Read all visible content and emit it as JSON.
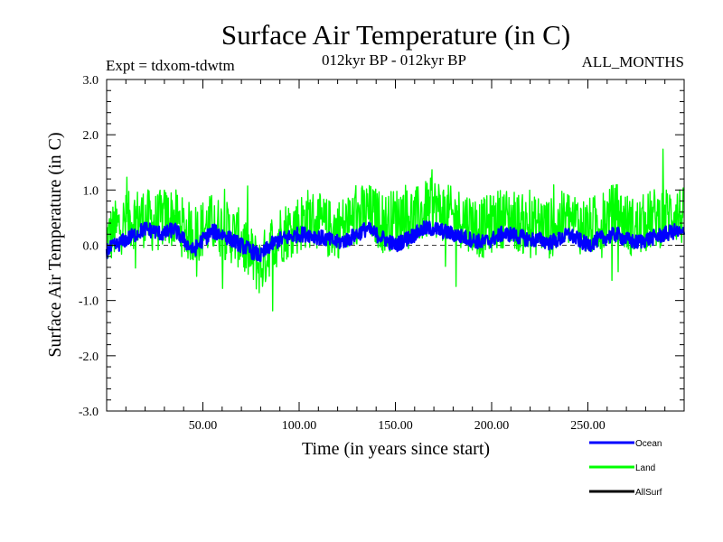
{
  "chart_data": {
    "type": "line",
    "title": "Surface Air Temperature (in C)",
    "experiment": "Expt = tdxom-tdwtm",
    "period": "012kyr BP - 012kyr BP",
    "season": "ALL_MONTHS",
    "xlabel": "Time (in years since start)",
    "ylabel": "Surface Air Temperature (in C)",
    "xlim": [
      0,
      300
    ],
    "ylim": [
      -3.0,
      3.0
    ],
    "x_ticks": [
      "50.00",
      "100.00",
      "150.00",
      "200.00",
      "250.00"
    ],
    "x_tick_values": [
      50,
      100,
      150,
      200,
      250
    ],
    "y_ticks": [
      "3.0",
      "2.0",
      "1.0",
      "0.0",
      "-1.0",
      "-2.0",
      "-3.0"
    ],
    "y_tick_values": [
      3.0,
      2.0,
      1.0,
      0.0,
      -1.0,
      -2.0,
      -3.0
    ],
    "zero_line": "dashed",
    "grid": false,
    "legend_placement": "bottom-right",
    "series": [
      {
        "name": "Ocean",
        "color": "#0000ff",
        "x": [
          0,
          5,
          10,
          15,
          20,
          25,
          30,
          35,
          40,
          45,
          50,
          55,
          60,
          65,
          70,
          75,
          80,
          85,
          90,
          95,
          100,
          105,
          110,
          115,
          120,
          125,
          130,
          135,
          140,
          145,
          150,
          155,
          160,
          165,
          170,
          175,
          180,
          185,
          190,
          195,
          200,
          205,
          210,
          215,
          220,
          225,
          230,
          235,
          240,
          245,
          250,
          255,
          260,
          265,
          270,
          275,
          280,
          285,
          290,
          295,
          300
        ],
        "y": [
          -0.1,
          0.0,
          0.1,
          0.2,
          0.3,
          0.25,
          0.2,
          0.3,
          0.1,
          -0.1,
          0.1,
          0.25,
          0.2,
          0.1,
          0.0,
          -0.1,
          -0.2,
          0.0,
          0.1,
          0.15,
          0.2,
          0.2,
          0.15,
          0.1,
          0.05,
          0.1,
          0.2,
          0.3,
          0.2,
          0.1,
          0.0,
          0.1,
          0.2,
          0.3,
          0.3,
          0.25,
          0.2,
          0.15,
          0.1,
          0.05,
          0.1,
          0.2,
          0.2,
          0.15,
          0.1,
          0.1,
          0.05,
          0.1,
          0.2,
          0.1,
          0.0,
          0.1,
          0.15,
          0.2,
          0.1,
          0.05,
          0.1,
          0.15,
          0.2,
          0.25,
          0.2
        ]
      },
      {
        "name": "Land",
        "color": "#00ff00",
        "x": [
          0,
          5,
          10,
          15,
          20,
          25,
          30,
          35,
          40,
          45,
          50,
          55,
          60,
          65,
          70,
          75,
          80,
          85,
          90,
          95,
          100,
          105,
          110,
          115,
          120,
          125,
          130,
          135,
          140,
          145,
          150,
          155,
          160,
          165,
          170,
          175,
          180,
          185,
          190,
          195,
          200,
          205,
          210,
          215,
          220,
          225,
          230,
          235,
          240,
          245,
          250,
          255,
          260,
          265,
          270,
          275,
          280,
          285,
          290,
          295,
          300
        ],
        "y": [
          0.1,
          0.3,
          0.4,
          0.5,
          0.5,
          0.4,
          0.5,
          0.5,
          0.3,
          0.2,
          0.3,
          0.4,
          0.3,
          0.2,
          0.1,
          -0.2,
          -0.4,
          0.0,
          0.2,
          0.3,
          0.4,
          0.5,
          0.4,
          0.3,
          0.3,
          0.4,
          0.5,
          0.6,
          0.5,
          0.4,
          0.5,
          0.6,
          0.5,
          0.6,
          0.7,
          0.6,
          0.5,
          0.5,
          0.4,
          0.3,
          0.4,
          0.5,
          0.5,
          0.4,
          0.3,
          0.4,
          0.3,
          0.4,
          0.5,
          0.4,
          0.3,
          0.4,
          0.5,
          0.6,
          0.4,
          0.3,
          0.4,
          0.5,
          0.5,
          0.6,
          0.5
        ]
      },
      {
        "name": "AllSurf",
        "color": "#000000",
        "x": [],
        "y": []
      }
    ]
  }
}
